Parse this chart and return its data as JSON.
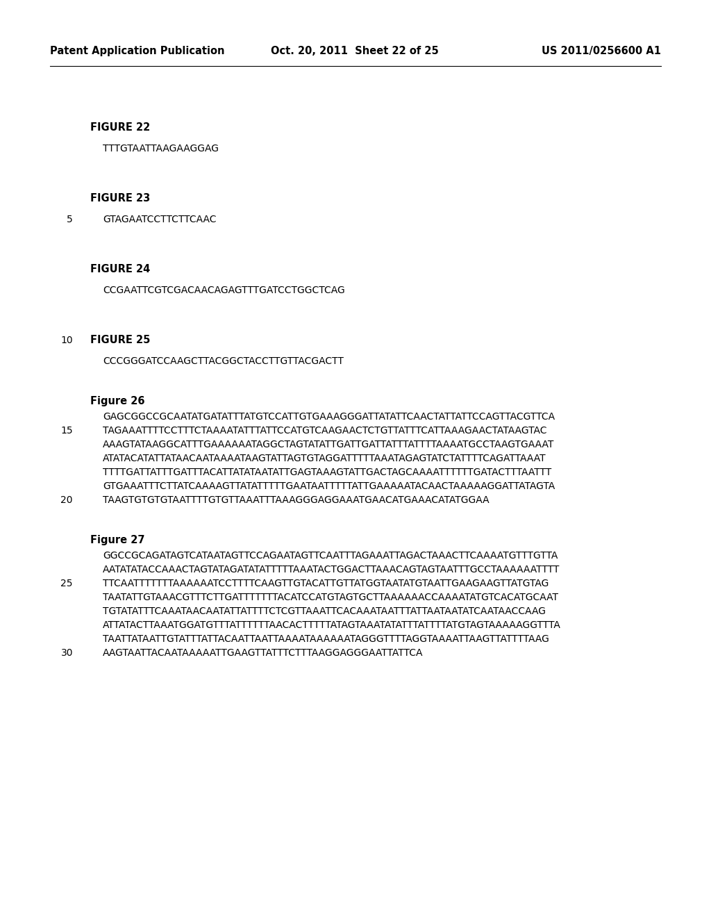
{
  "background_color": "#ffffff",
  "header_left": "Patent Application Publication",
  "header_mid": "Oct. 20, 2011  Sheet 22 of 25",
  "header_right": "US 2011/0256600 A1",
  "fig22_title": "FIGURE 22",
  "fig22_seq": "TTTGTAATTAAGAAGGAG",
  "fig23_title": "FIGURE 23",
  "fig23_linenum": "5",
  "fig23_seq": "GTAGAATCCTTCTTCAAC",
  "fig24_title": "FIGURE 24",
  "fig24_seq": "CCGAATTCGTCGACAACAGAGTTTGATCCTGGCTCAG",
  "fig25_linenum": "10",
  "fig25_title": "FIGURE 25",
  "fig25_seq": "CCCGGGATCCAAGCTTACGGCTACCTTGTTACGACTT",
  "fig26_title": "Figure 26",
  "fig26_lines": [
    [
      null,
      "GAGCGGCCGCAATATGATATTTATGTCCATTGTGAAAGGGATTATATTCAACTATTATTCCAGTTACGTTCA"
    ],
    [
      "15",
      "TAGAAATTTTCCTTTCTAAAATATTTATTCCATGTCAAGAACTCTGTTATTTCATTAAAGAACTATAAGTAC"
    ],
    [
      null,
      "AAAGTATAAGGCATTTGAAAAAATAGGCTAGTATATTGATTGATTATTTATTTTAAAATGCCTAAGTGAAAT"
    ],
    [
      null,
      "ATATACATATTATAACAATAAAATAAGTATTAGTGTAGGATTTTTAAATAGAGTATCTATTTTCAGATTAAAT"
    ],
    [
      null,
      "TTTTGATTATTTGATTTACATTATATAATATTGAGTAAAGTATTGACTAGCAAAATTTTTTGATACTTTAATTT"
    ],
    [
      null,
      "GTGAAATTTCTTATCAAAAGTTATATTTTTGAATAATTTTTATTGAAAAATACAACTAAAAAGGATTATAGTA"
    ],
    [
      "20",
      "TAAGTGTGTGTAATTTTGTGTTAAATTTAAAGGGAGGAAATGAACATGAAACATATGGAA"
    ]
  ],
  "fig27_title": "Figure 27",
  "fig27_lines": [
    [
      null,
      "GGCCGCAGATAGTCATAATAGTTCCAGAATAGTTCAATTTAGAAATTAGACTAAACTTCAAAATGTTTGTTA"
    ],
    [
      null,
      "AATATATACCAAACTAGTATAGATATATTTTTAAATACTGGACTTAAACAGTAGTAATTTGCCTAAAAAATTTT"
    ],
    [
      "25",
      "TTCAATTTTTTTAAAAAATCCTTTTCAAGTTGTACATTGTTATGGTAATATGTAATTGAAGAAGTTATGTAG"
    ],
    [
      null,
      "TAATATTGTAAACGTTTCTTGATTTTTTTACATCCATGTAGTGCTTAAAAAACCAAAATATGTCACATGCAAT"
    ],
    [
      null,
      "TGTATATTTCAAATAACAATATTATTTTCTCGTTAAATTCACAAATAATTTATTAATAATATCAATAACCAAG"
    ],
    [
      null,
      "ATTATACTTAAATGGATGTTTATTTTTTAACACTTTTTATAGTAAATATATTTATTTTATGTAGTAAAAAGGTTTA"
    ],
    [
      null,
      "TAATTATAATTGTATTTATTACAATTAATTAAAATAAAAAATAGGGTTTTAGGTAAAATTAAGTTATTTTAAG"
    ],
    [
      "30",
      "AAGTAATTACAATAAAAATTGAAGTTATTTCTTTAAGGAGGGAATTATTCA"
    ]
  ]
}
